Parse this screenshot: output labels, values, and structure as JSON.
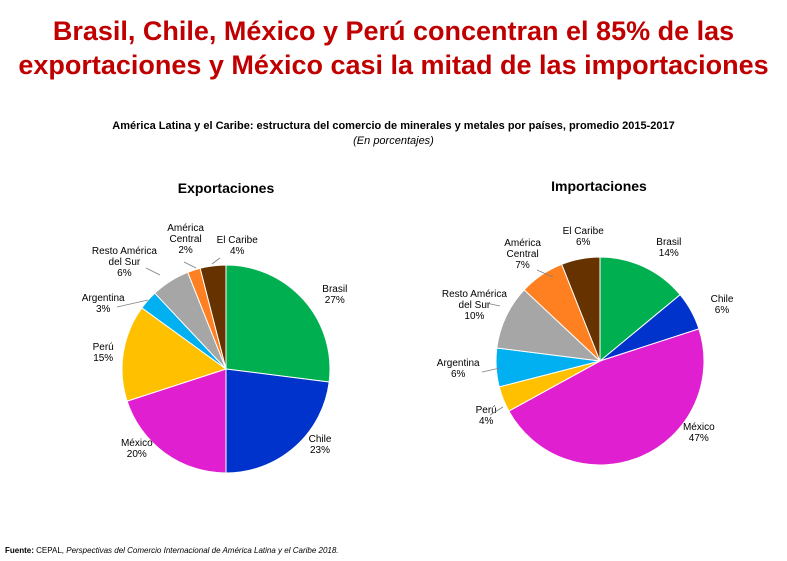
{
  "headline": {
    "line1": "Brasil, Chile, México y Perú concentran el 85% de las",
    "line2": "exportaciones y México casi la mitad de las importaciones"
  },
  "subtitle": "América Latina y el Caribe: estructura del comercio de minerales y metales por países, promedio 2015-2017",
  "subnote": "(En porcentajes)",
  "source": {
    "label": "Fuente:",
    "org": "CEPAL,",
    "title": "Perspectivas del Comercio Internacional de América Latina y el Caribe 2018."
  },
  "colors": {
    "Brasil": "#00b050",
    "Chile": "#0033cc",
    "México": "#e020d0",
    "Perú": "#ffc000",
    "Argentina": "#00b0f0",
    "Resto América del Sur": "#a6a6a6",
    "América Central": "#ff8020",
    "El Caribe": "#663300"
  },
  "chart_data": [
    {
      "type": "pie",
      "title": "Exportaciones",
      "start": "top, clockwise",
      "slices": [
        {
          "label": "Brasil",
          "value": 27,
          "text": "27%"
        },
        {
          "label": "Chile",
          "value": 23,
          "text": "23%"
        },
        {
          "label": "México",
          "value": 20,
          "text": "20%"
        },
        {
          "label": "Perú",
          "value": 15,
          "text": "15%"
        },
        {
          "label": "Argentina",
          "value": 3,
          "text": "3%"
        },
        {
          "label": "Resto América del Sur",
          "value": 6,
          "text": "6%"
        },
        {
          "label": "América Central",
          "value": 2,
          "text": "2%"
        },
        {
          "label": "El Caribe",
          "value": 4,
          "text": "4%"
        }
      ]
    },
    {
      "type": "pie",
      "title": "Importaciones",
      "start": "top, clockwise",
      "slices": [
        {
          "label": "Brasil",
          "value": 14,
          "text": "14%"
        },
        {
          "label": "Chile",
          "value": 6,
          "text": "6%"
        },
        {
          "label": "México",
          "value": 47,
          "text": "47%"
        },
        {
          "label": "Perú",
          "value": 4,
          "text": "4%"
        },
        {
          "label": "Argentina",
          "value": 6,
          "text": "6%"
        },
        {
          "label": "Resto América del Sur",
          "value": 10,
          "text": "10%"
        },
        {
          "label": "América Central",
          "value": 7,
          "text": "7%"
        },
        {
          "label": "El Caribe",
          "value": 6,
          "text": "6%"
        }
      ]
    }
  ]
}
